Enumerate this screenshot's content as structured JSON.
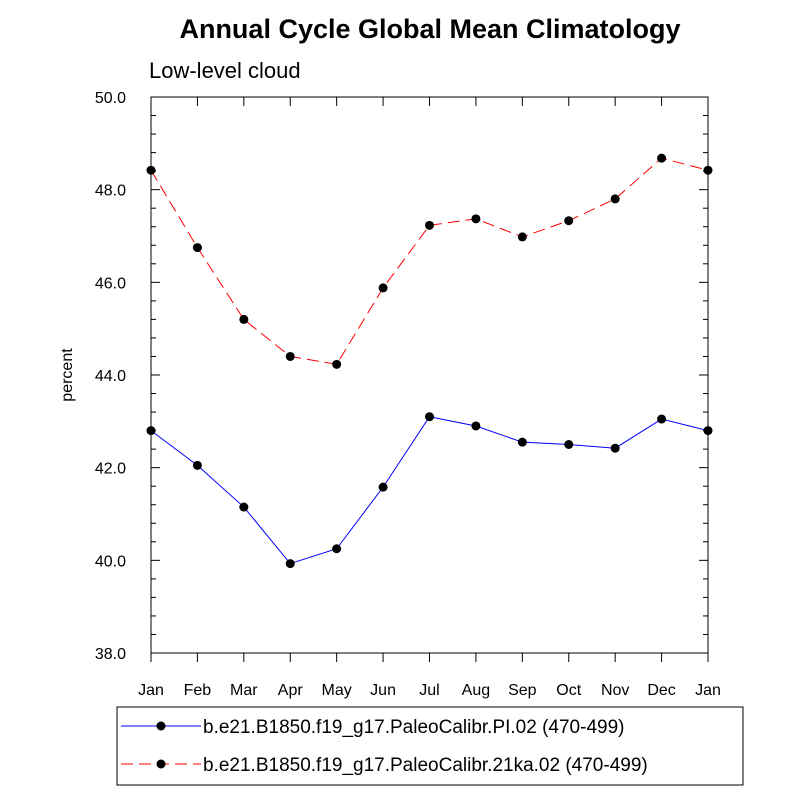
{
  "chart_data": {
    "type": "line",
    "title": "Annual Cycle Global Mean Climatology",
    "subtitle": "Low-level cloud",
    "xlabel": "",
    "ylabel": "percent",
    "categories": [
      "Jan",
      "Feb",
      "Mar",
      "Apr",
      "May",
      "Jun",
      "Jul",
      "Aug",
      "Sep",
      "Oct",
      "Nov",
      "Dec",
      "Jan"
    ],
    "ylim": [
      38.0,
      50.0
    ],
    "yticks": [
      "38.0",
      "40.0",
      "42.0",
      "44.0",
      "46.0",
      "48.0",
      "50.0"
    ],
    "ytick_values": [
      38.0,
      40.0,
      42.0,
      44.0,
      46.0,
      48.0,
      50.0
    ],
    "grid": false,
    "legend_position": "bottom",
    "series": [
      {
        "name": "b.e21.B1850.f19_g17.PaleoCalibr.PI.02 (470-499)",
        "color": "#0000ff",
        "line_style": "solid",
        "marker": "filled-circle",
        "values": [
          42.8,
          42.05,
          41.15,
          39.93,
          40.25,
          41.58,
          43.1,
          42.9,
          42.55,
          42.5,
          42.42,
          43.05,
          42.8
        ]
      },
      {
        "name": "b.e21.B1850.f19_g17.PaleoCalibr.21ka.02 (470-499)",
        "color": "#ff0000",
        "line_style": "dashed",
        "marker": "filled-circle",
        "values": [
          48.42,
          46.75,
          45.2,
          44.4,
          44.23,
          45.88,
          47.23,
          47.37,
          46.98,
          47.33,
          47.8,
          48.68,
          48.42
        ]
      }
    ]
  }
}
